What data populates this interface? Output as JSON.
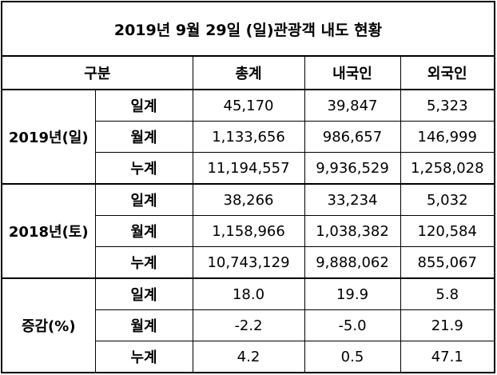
{
  "title": "2019년 9월 29일 (일)관광객 내도 현황",
  "header": [
    "구분",
    "총계",
    "내국인",
    "외국인"
  ],
  "groups": [
    {
      "label": "2019년(일)",
      "rows": [
        {
          "label": "일계",
          "values": [
            "45,170",
            "39,847",
            "5,323"
          ]
        },
        {
          "label": "월계",
          "values": [
            "1,133,656",
            "986,657",
            "146,999"
          ]
        },
        {
          "label": "누계",
          "values": [
            "11,194,557",
            "9,936,529",
            "1,258,028"
          ]
        }
      ]
    },
    {
      "label": "2018년(토)",
      "rows": [
        {
          "label": "일계",
          "values": [
            "38,266",
            "33,234",
            "5,032"
          ]
        },
        {
          "label": "월계",
          "values": [
            "1,158,966",
            "1,038,382",
            "120,584"
          ]
        },
        {
          "label": "누계",
          "values": [
            "10,743,129",
            "9,888,062",
            "855,067"
          ]
        }
      ]
    },
    {
      "label": "증감(%)",
      "rows": [
        {
          "label": "일계",
          "values": [
            "18.0",
            "19.9",
            "5.8"
          ]
        },
        {
          "label": "월계",
          "values": [
            "-2.2",
            "-5.0",
            "21.9"
          ]
        },
        {
          "label": "누계",
          "values": [
            "4.2",
            "0.5",
            "47.1"
          ]
        }
      ]
    }
  ]
}
